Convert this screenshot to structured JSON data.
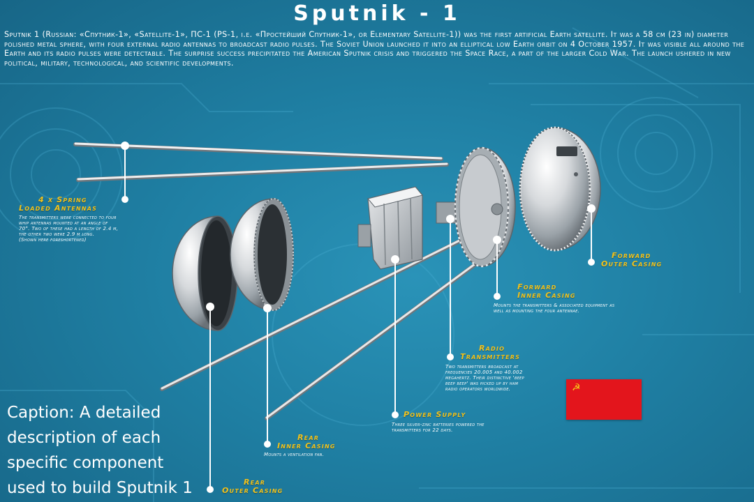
{
  "title": "Sputnik - 1",
  "intro": "Sputnik 1 (Russian: «Спутник-1», «Satellite-1», ПС-1 (PS-1, i.e. «Простейший Спутник-1», or Elementary Satellite-1)) was the first artificial Earth satellite. It was a 58 cm (23 in) diameter polished metal sphere, with four external radio antennas to broadcast radio pulses. The Soviet Union launched it into an elliptical low Earth orbit on 4 October 1957. It was visible all around the Earth and its radio pulses were detectable. The surprise success precipitated the American Sputnik crisis and triggered the Space Race, a part of the larger Cold War. The launch ushered in new political, military, technological, and scientific developments.",
  "components": {
    "antennas": {
      "head_1": "4 x Spring",
      "head_2": "Loaded Antennas",
      "desc_1": "The transmitters were connected to four",
      "desc_2": "whip antennas mounted at an angle of",
      "desc_3": "70°. Two of these had a length of 2.4 m,",
      "desc_4": "the other two were 2.9 m long.",
      "desc_5": "(Shown here foreshortened)"
    },
    "forward_outer": {
      "head_1": "Forward",
      "head_2": "Outer Casing"
    },
    "forward_inner": {
      "head_1": "Forward",
      "head_2": "Inner Casing",
      "desc_1": "Mounts the transmitters & associated equipment as",
      "desc_2": "well as mounting the four antennae."
    },
    "radio": {
      "head_1": "Radio",
      "head_2": "Transmitters",
      "desc_1": "Two transmitters broadcast at",
      "desc_2": "frequencies 20.005 and 40.002",
      "desc_3": "megahertz. Their distinctive 'beep",
      "desc_4": "beep beep' was picked up by ham",
      "desc_5": "radio operators worldwide."
    },
    "power": {
      "head_1": "Power Supply",
      "desc_1": "Three silver-zinc batteries powered the",
      "desc_2": "transmitters for 22 days."
    },
    "rear_inner": {
      "head_1": "Rear",
      "head_2": "Inner Casing",
      "desc_1": "Mounts a ventilation fan."
    },
    "rear_outer": {
      "head_1": "Rear",
      "head_2": "Outer Casing"
    }
  },
  "flag": {
    "emblem": "☭",
    "colors": {
      "field": "#e3151c",
      "emblem": "#f7d31a"
    }
  },
  "caption": "Caption: A detailed description of each specific component used to build Sputnik 1",
  "colors": {
    "background": "#1f7fa3",
    "heading": "#f2c21b",
    "text": "#ffffff",
    "leader": "#ffffff"
  }
}
